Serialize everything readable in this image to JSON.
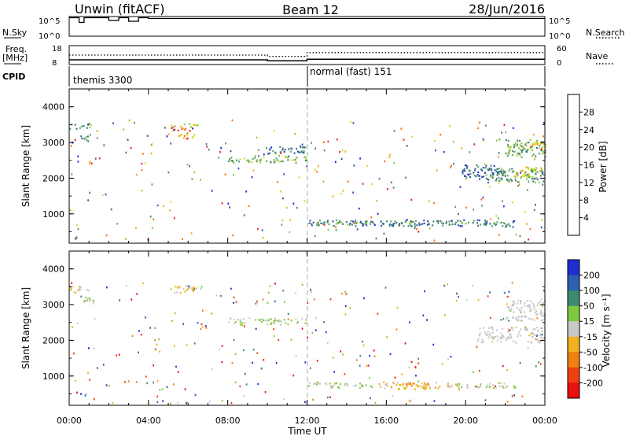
{
  "header": {
    "station": "Unwin (fitACF)",
    "beam": "Beam 12",
    "date": "28/Jun/2016"
  },
  "strips": {
    "nsky_label": "N.Sky",
    "nsky_ticks": [
      "10^5",
      "10^0"
    ],
    "nsearch_label": "N.Search",
    "nsearch_ticks": [
      "10^5",
      "10^0"
    ],
    "freq_label_top": "Freq.",
    "freq_label_bottom": "[MHz]",
    "freq_ticks": [
      "18",
      "8"
    ],
    "nave_label": "Nave",
    "nave_ticks": [
      "60",
      "0"
    ],
    "cpid_label": "CPID",
    "cpid_segments": [
      "themis 3300",
      "normal (fast) 151"
    ]
  },
  "axes": {
    "ylabel": "Slant Range [km]",
    "xlabel": "Time UT",
    "x_ticks": [
      "00:00",
      "04:00",
      "08:00",
      "12:00",
      "16:00",
      "20:00",
      "00:00"
    ],
    "y_ticks": [
      "1000",
      "2000",
      "3000",
      "4000"
    ]
  },
  "colorbars": {
    "power": {
      "label": "Power [dB]",
      "ticks": [
        "4",
        "8",
        "12",
        "16",
        "20",
        "24",
        "28"
      ],
      "colors": [
        "#1f1fe6",
        "#2f4fb0",
        "#3e7a78",
        "#58a060",
        "#8bc83c",
        "#d8d820",
        "#f0a818",
        "#f07010",
        "#e82010"
      ]
    },
    "velocity": {
      "label": "Velocity [m s⁻¹]",
      "ticks": [
        "200",
        "100",
        "50",
        "15",
        "-15",
        "-50",
        "-100",
        "-200"
      ],
      "colors": [
        "#1f2fd0",
        "#2f5fb0",
        "#3e8a70",
        "#80c840",
        "#c8c8c8",
        "#f0b020",
        "#f08010",
        "#f04010",
        "#e81010"
      ]
    }
  },
  "chart_data": [
    {
      "type": "line",
      "title": "N.Sky / N.Search",
      "x": [
        "00:00",
        "00:30",
        "00:45",
        "01:00",
        "02:00",
        "02:30",
        "03:00",
        "03:30",
        "04:00",
        "24:00"
      ],
      "series": [
        {
          "name": "N.Sky",
          "values": [
            4.7,
            3.5,
            4.7,
            4.7,
            4.0,
            4.7,
            3.8,
            4.7,
            4.5,
            4.5
          ]
        }
      ],
      "ylim": [
        0,
        5
      ]
    },
    {
      "type": "line",
      "title": "Freq. / Nave",
      "x": [
        "00:00",
        "10:00",
        "10:00",
        "12:00",
        "12:00",
        "24:00"
      ],
      "series": [
        {
          "name": "Freq.",
          "values": [
            10.5,
            10.5,
            10.0,
            10.0,
            10.8,
            10.8
          ]
        },
        {
          "name": "Nave",
          "values": [
            30,
            30,
            26,
            26,
            38,
            38
          ]
        }
      ],
      "ylim": [
        8,
        18
      ]
    },
    {
      "type": "heatmap",
      "title": "Power [dB]",
      "xlabel": "Time UT",
      "ylabel": "Slant Range [km]",
      "xlim": [
        0,
        24
      ],
      "ylim": [
        180,
        4500
      ],
      "zlim": [
        0,
        30
      ],
      "blobs": [
        {
          "t0": 0.0,
          "t1": 1.0,
          "r0": 3400,
          "r1": 3550,
          "level": 12
        },
        {
          "t0": 0.5,
          "t1": 1.3,
          "r0": 3050,
          "r1": 3250,
          "level": 10
        },
        {
          "t0": 5.1,
          "t1": 6.6,
          "r0": 3450,
          "r1": 3550,
          "level": 18
        },
        {
          "t0": 5.1,
          "t1": 6.4,
          "r0": 3350,
          "r1": 3450,
          "level": 26
        },
        {
          "t0": 5.5,
          "t1": 6.3,
          "r0": 3100,
          "r1": 3300,
          "level": 22
        },
        {
          "t0": 8.0,
          "t1": 12.0,
          "r0": 2450,
          "r1": 2650,
          "level": 14
        },
        {
          "t0": 9.5,
          "t1": 12.0,
          "r0": 2700,
          "r1": 2900,
          "level": 8
        },
        {
          "t0": 12.0,
          "t1": 22.5,
          "r0": 680,
          "r1": 850,
          "level": 8
        },
        {
          "t0": 12.0,
          "t1": 22.5,
          "r0": 730,
          "r1": 790,
          "level": 12
        },
        {
          "t0": 19.8,
          "t1": 22.0,
          "r0": 2000,
          "r1": 2400,
          "level": 6
        },
        {
          "t0": 21.0,
          "t1": 23.9,
          "r0": 1900,
          "r1": 2300,
          "level": 10
        },
        {
          "t0": 22.5,
          "t1": 24.0,
          "r0": 2050,
          "r1": 2350,
          "level": 18
        },
        {
          "t0": 22.0,
          "t1": 24.0,
          "r0": 2600,
          "r1": 3100,
          "level": 12
        },
        {
          "t0": 22.8,
          "t1": 24.0,
          "r0": 2850,
          "r1": 3050,
          "level": 20
        }
      ]
    },
    {
      "type": "heatmap",
      "title": "Velocity [m s-1]",
      "xlabel": "Time UT",
      "ylabel": "Slant Range [km]",
      "xlim": [
        0,
        24
      ],
      "ylim": [
        180,
        4500
      ],
      "zlim": [
        -250,
        250
      ],
      "blobs": [
        {
          "t0": 0.0,
          "t1": 1.0,
          "r0": 3350,
          "r1": 3550,
          "level": -20
        },
        {
          "t0": 0.6,
          "t1": 1.3,
          "r0": 3050,
          "r1": 3250,
          "level": 20
        },
        {
          "t0": 5.1,
          "t1": 6.6,
          "r0": 3350,
          "r1": 3550,
          "level": -40
        },
        {
          "t0": 8.0,
          "t1": 12.0,
          "r0": 2450,
          "r1": 2650,
          "level": 30
        },
        {
          "t0": 12.0,
          "t1": 15.5,
          "r0": 680,
          "r1": 850,
          "level": 30
        },
        {
          "t0": 15.5,
          "t1": 19.5,
          "r0": 680,
          "r1": 850,
          "level": -40
        },
        {
          "t0": 16.5,
          "t1": 18.5,
          "r0": 650,
          "r1": 820,
          "level": -70
        },
        {
          "t0": 19.5,
          "t1": 22.5,
          "r0": 680,
          "r1": 850,
          "level": 20
        },
        {
          "t0": 20.5,
          "t1": 24.0,
          "r0": 1950,
          "r1": 2400,
          "level": 0
        },
        {
          "t0": 22.0,
          "t1": 24.0,
          "r0": 2550,
          "r1": 3150,
          "level": 0
        }
      ]
    }
  ]
}
